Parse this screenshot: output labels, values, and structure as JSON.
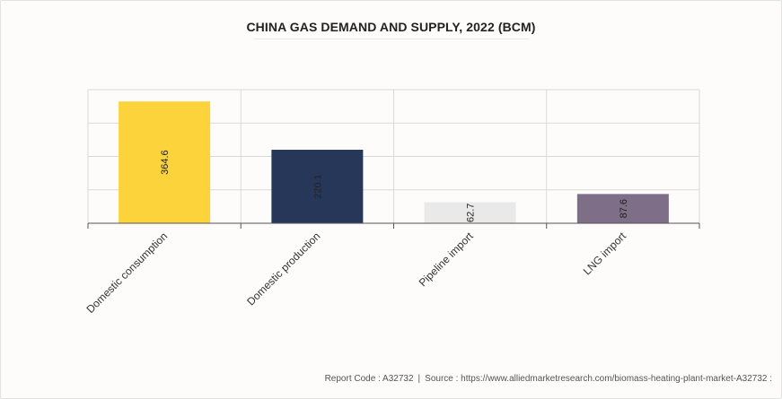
{
  "chart_data": {
    "type": "bar",
    "title": "CHINA GAS DEMAND AND SUPPLY, 2022 (BCM)",
    "categories": [
      "Domestic consumption",
      "Domestic production",
      "Pipeline import",
      "LNG import"
    ],
    "values": [
      364.6,
      220.1,
      62.7,
      87.6
    ],
    "value_labels": [
      "364.6",
      "220.1",
      "62.7",
      "87.6"
    ],
    "colors": [
      "#fdd33c",
      "#26375a",
      "#e9e9e9",
      "#7e6e87"
    ],
    "xlabel": "",
    "ylabel": "",
    "ylim": [
      0,
      400
    ],
    "yticks": [
      0,
      100,
      200,
      300,
      400
    ],
    "grid": true,
    "legend": "none"
  },
  "footer": {
    "report_code": "Report Code : A32732",
    "separator": "|",
    "source": "Source : https://www.alliedmarketresearch.com/biomass-heating-plant-market-A32732 :"
  }
}
